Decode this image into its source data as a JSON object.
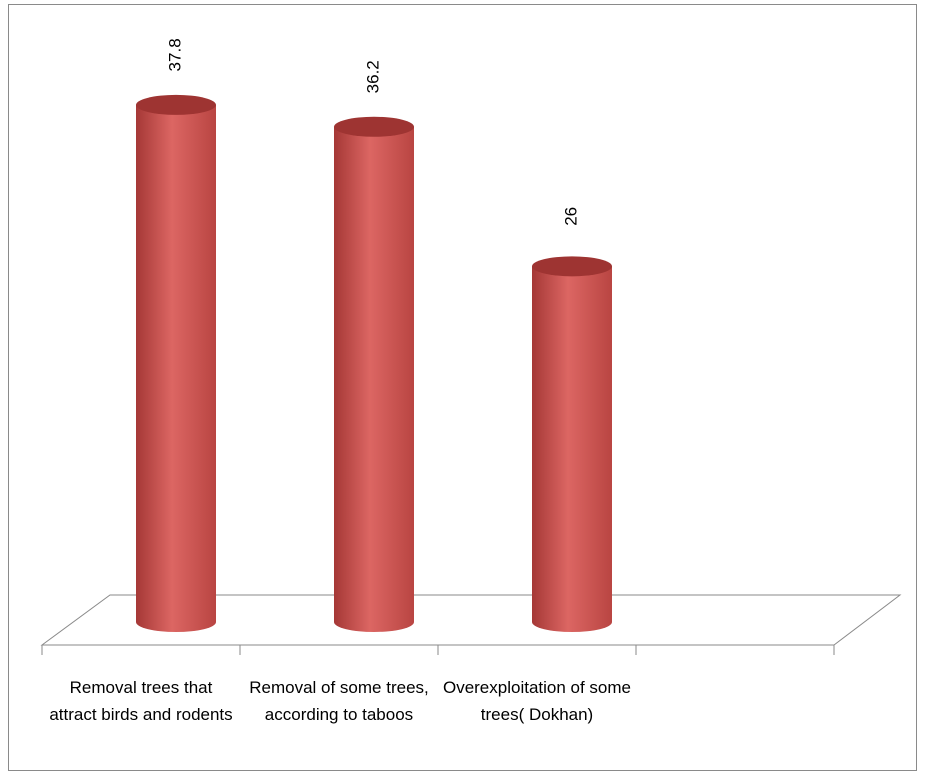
{
  "chart_data": {
    "type": "bar3d",
    "categories": [
      "Removal trees that attract birds and rodents",
      "Removal of some trees, according to taboos",
      "Overexploitation of some trees( Dokhan)",
      null
    ],
    "values": [
      37.8,
      36.2,
      26,
      null
    ],
    "color": "#c8504d"
  }
}
